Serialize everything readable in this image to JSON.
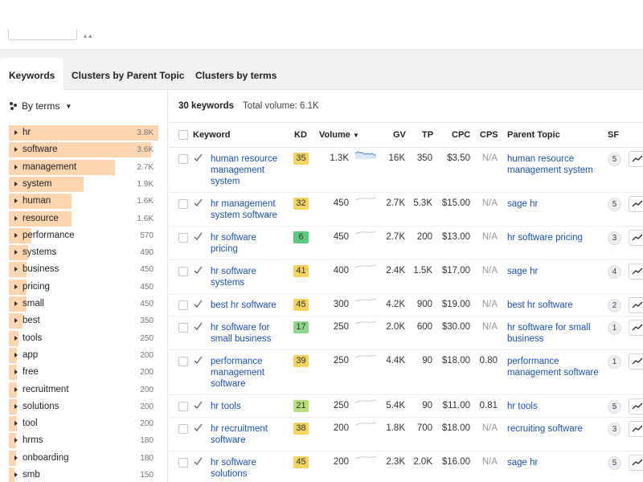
{
  "tabs": [
    "Keywords",
    "Clusters by Parent Topic",
    "Clusters by terms"
  ],
  "sidebar": {
    "group_by_label": "By terms",
    "terms": [
      {
        "label": "hr",
        "count": "3.8K",
        "fill": 1.0
      },
      {
        "label": "software",
        "count": "3.6K",
        "fill": 0.95
      },
      {
        "label": "management",
        "count": "2.7K",
        "fill": 0.71
      },
      {
        "label": "system",
        "count": "1.9K",
        "fill": 0.5
      },
      {
        "label": "human",
        "count": "1.6K",
        "fill": 0.42
      },
      {
        "label": "resource",
        "count": "1.6K",
        "fill": 0.42
      },
      {
        "label": "performance",
        "count": "570",
        "fill": 0.15
      },
      {
        "label": "systems",
        "count": "490",
        "fill": 0.13
      },
      {
        "label": "business",
        "count": "450",
        "fill": 0.12
      },
      {
        "label": "pricing",
        "count": "450",
        "fill": 0.12
      },
      {
        "label": "small",
        "count": "450",
        "fill": 0.12
      },
      {
        "label": "best",
        "count": "350",
        "fill": 0.09
      },
      {
        "label": "tools",
        "count": "250",
        "fill": 0.066
      },
      {
        "label": "app",
        "count": "200",
        "fill": 0.053
      },
      {
        "label": "free",
        "count": "200",
        "fill": 0.053
      },
      {
        "label": "recruitment",
        "count": "200",
        "fill": 0.053
      },
      {
        "label": "solutions",
        "count": "200",
        "fill": 0.053
      },
      {
        "label": "tool",
        "count": "200",
        "fill": 0.053
      },
      {
        "label": "hrms",
        "count": "180",
        "fill": 0.047
      },
      {
        "label": "onboarding",
        "count": "180",
        "fill": 0.047
      },
      {
        "label": "smb",
        "count": "150",
        "fill": 0.04
      }
    ]
  },
  "summary": {
    "keywords_count": "30 keywords",
    "total_volume": "Total volume: 6.1K"
  },
  "table": {
    "headers": {
      "keyword": "Keyword",
      "kd": "KD",
      "volume": "Volume",
      "gv": "GV",
      "tp": "TP",
      "cpc": "CPC",
      "cps": "CPS",
      "parent_topic": "Parent Topic",
      "sf": "SF"
    },
    "rows": [
      {
        "keyword": [
          "human resource",
          "management",
          "system"
        ],
        "kd": "35",
        "kd_color": "#f2d45c",
        "volume": "1.3K",
        "gv": "16K",
        "tp": "350",
        "cpc": "$3.50",
        "cps": "N/A",
        "parent_topic": [
          "human resource",
          "management system"
        ],
        "sf": "5"
      },
      {
        "keyword": [
          "hr management",
          "system software"
        ],
        "kd": "32",
        "kd_color": "#f2d45c",
        "volume": "450",
        "gv": "2.7K",
        "tp": "5.3K",
        "cpc": "$15.00",
        "cps": "N/A",
        "parent_topic": [
          "sage hr"
        ],
        "sf": "5"
      },
      {
        "keyword": [
          "hr software",
          "pricing"
        ],
        "kd": "6",
        "kd_color": "#5cc97e",
        "volume": "450",
        "gv": "2.7K",
        "tp": "200",
        "cpc": "$13.00",
        "cps": "N/A",
        "parent_topic": [
          "hr software pricing"
        ],
        "sf": "3"
      },
      {
        "keyword": [
          "hr software",
          "systems"
        ],
        "kd": "41",
        "kd_color": "#f2d45c",
        "volume": "400",
        "gv": "2.4K",
        "tp": "1.5K",
        "cpc": "$17.00",
        "cps": "N/A",
        "parent_topic": [
          "sage hr"
        ],
        "sf": "4"
      },
      {
        "keyword": [
          "best hr software"
        ],
        "kd": "45",
        "kd_color": "#f2d45c",
        "volume": "300",
        "gv": "4.2K",
        "tp": "900",
        "cpc": "$19.00",
        "cps": "N/A",
        "parent_topic": [
          "best hr software"
        ],
        "sf": "2"
      },
      {
        "keyword": [
          "hr software for",
          "small business"
        ],
        "kd": "17",
        "kd_color": "#8ed68a",
        "volume": "250",
        "gv": "2.0K",
        "tp": "600",
        "cpc": "$30.00",
        "cps": "N/A",
        "parent_topic": [
          "hr software for small",
          "business"
        ],
        "sf": "1"
      },
      {
        "keyword": [
          "performance",
          "management",
          "software"
        ],
        "kd": "39",
        "kd_color": "#f2d45c",
        "volume": "250",
        "gv": "4.4K",
        "tp": "90",
        "cpc": "$18.00",
        "cps": "0.80",
        "parent_topic": [
          "performance",
          "management software"
        ],
        "sf": "1"
      },
      {
        "keyword": [
          "hr tools"
        ],
        "kd": "21",
        "kd_color": "#b9de7a",
        "volume": "250",
        "gv": "5.4K",
        "tp": "90",
        "cpc": "$11.00",
        "cps": "0.81",
        "parent_topic": [
          "hr tools"
        ],
        "sf": "5"
      },
      {
        "keyword": [
          "hr recruitment",
          "software"
        ],
        "kd": "38",
        "kd_color": "#f2d45c",
        "volume": "200",
        "gv": "1.8K",
        "tp": "700",
        "cpc": "$18.00",
        "cps": "N/A",
        "parent_topic": [
          "recruiting software"
        ],
        "sf": "3"
      },
      {
        "keyword": [
          "hr software",
          "solutions"
        ],
        "kd": "45",
        "kd_color": "#f2d45c",
        "volume": "200",
        "gv": "2.3K",
        "tp": "2.0K",
        "cpc": "$16.00",
        "cps": "N/A",
        "parent_topic": [
          "sage hr"
        ],
        "sf": "5"
      }
    ]
  }
}
